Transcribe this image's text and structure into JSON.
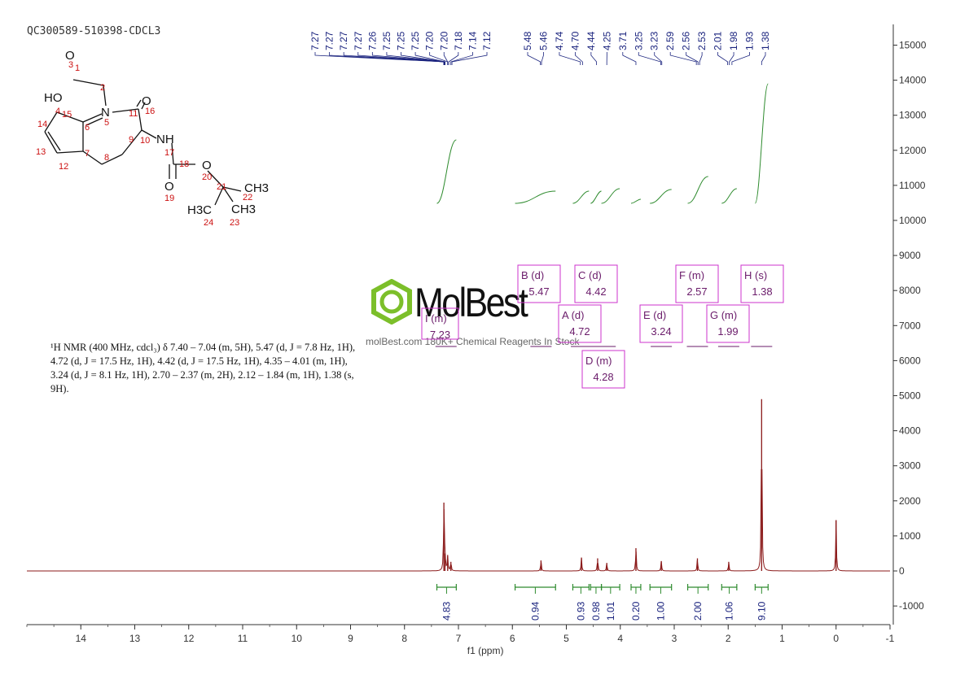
{
  "header": {
    "sample_id": "QC300589-510398-CDCL3"
  },
  "nmr_description": "¹H NMR (400 MHz, cdcl₃) δ 7.40 – 7.04 (m, 5H), 5.47 (d, J = 7.8 Hz, 1H), 4.72 (d, J = 17.5 Hz, 1H), 4.42 (d, J = 17.5 Hz, 1H), 4.35 – 4.01 (m, 1H), 3.24 (d, J = 8.1 Hz, 1H), 2.70 – 2.37 (m, 2H), 2.12 – 1.84 (m, 1H), 1.38 (s, 9H).",
  "watermark": {
    "brand": "MolBest",
    "tagline": "molBest.com 180K+ Chemical Reagents In Stock"
  },
  "molecule": {
    "atoms": [
      "O",
      "HO",
      "N",
      "O",
      "NH",
      "O",
      "O",
      "H3C",
      "CH3",
      "CH3"
    ],
    "numbers": [
      "1",
      "2",
      "3",
      "4",
      "5",
      "6",
      "7",
      "8",
      "9",
      "10",
      "11",
      "12",
      "13",
      "14",
      "15",
      "16",
      "17",
      "18",
      "19",
      "20",
      "21",
      "22",
      "23",
      "24"
    ]
  },
  "chart_data": {
    "type": "line",
    "title": "",
    "xlabel": "f1 (ppm)",
    "ylabel": "",
    "xlim": [
      15,
      -1
    ],
    "ylim": [
      -1500,
      15500
    ],
    "x_ticks": [
      "14",
      "13",
      "12",
      "11",
      "10",
      "9",
      "8",
      "7",
      "6",
      "5",
      "4",
      "3",
      "2",
      "1",
      "0",
      "-1"
    ],
    "y_ticks": [
      "15000",
      "14000",
      "13000",
      "12000",
      "11000",
      "10000",
      "9000",
      "8000",
      "7000",
      "6000",
      "5000",
      "4000",
      "3000",
      "2000",
      "1000",
      "0",
      "-1000"
    ],
    "peak_labels": [
      "7.27",
      "7.27",
      "7.27",
      "7.27",
      "7.26",
      "7.25",
      "7.25",
      "7.25",
      "7.20",
      "7.20",
      "7.18",
      "7.14",
      "7.12",
      "5.48",
      "5.46",
      "4.74",
      "4.70",
      "4.44",
      "4.25",
      "3.71",
      "3.25",
      "3.23",
      "2.59",
      "2.56",
      "2.53",
      "2.01",
      "1.98",
      "1.93",
      "1.38"
    ],
    "peaks": [
      {
        "ppm": 7.27,
        "height": 1950
      },
      {
        "ppm": 7.25,
        "height": 500
      },
      {
        "ppm": 7.2,
        "height": 420
      },
      {
        "ppm": 7.14,
        "height": 260
      },
      {
        "ppm": 5.47,
        "height": 300
      },
      {
        "ppm": 4.72,
        "height": 380
      },
      {
        "ppm": 4.42,
        "height": 360
      },
      {
        "ppm": 4.25,
        "height": 230
      },
      {
        "ppm": 3.71,
        "height": 650
      },
      {
        "ppm": 3.24,
        "height": 280
      },
      {
        "ppm": 2.57,
        "height": 360
      },
      {
        "ppm": 1.99,
        "height": 260
      },
      {
        "ppm": 1.38,
        "height": 4900
      },
      {
        "ppm": 0.0,
        "height": 1450
      }
    ],
    "multiplets": [
      {
        "letter": "I",
        "mult": "m",
        "shift": "7.23"
      },
      {
        "letter": "B",
        "mult": "d",
        "shift": "5.47"
      },
      {
        "letter": "A",
        "mult": "d",
        "shift": "4.72"
      },
      {
        "letter": "C",
        "mult": "d",
        "shift": "4.42"
      },
      {
        "letter": "D",
        "mult": "m",
        "shift": "4.28"
      },
      {
        "letter": "E",
        "mult": "d",
        "shift": "3.24"
      },
      {
        "letter": "F",
        "mult": "m",
        "shift": "2.57"
      },
      {
        "letter": "G",
        "mult": "m",
        "shift": "1.99"
      },
      {
        "letter": "H",
        "mult": "s",
        "shift": "1.38"
      }
    ],
    "integrals": [
      {
        "from": 7.4,
        "to": 7.04,
        "value": "4.83"
      },
      {
        "from": 5.95,
        "to": 5.2,
        "value": "0.94"
      },
      {
        "from": 4.88,
        "to": 4.58,
        "value": "0.93"
      },
      {
        "from": 4.55,
        "to": 4.35,
        "value": "0.98"
      },
      {
        "from": 4.35,
        "to": 4.01,
        "value": "1.01"
      },
      {
        "from": 3.8,
        "to": 3.62,
        "value": "0.20"
      },
      {
        "from": 3.45,
        "to": 3.05,
        "value": "1.00"
      },
      {
        "from": 2.75,
        "to": 2.37,
        "value": "2.00"
      },
      {
        "from": 2.12,
        "to": 1.84,
        "value": "1.06"
      },
      {
        "from": 1.5,
        "to": 1.26,
        "value": "9.10"
      }
    ],
    "colors": {
      "spectrum": "#8b1a1a",
      "integral": "#2e8b2e",
      "peak_label": "#1a237e",
      "multiplet_box": "#cc33cc",
      "multiplet_text": "#6a1b6a",
      "axis": "#333333",
      "logo_green": "#7cbf2a"
    }
  }
}
